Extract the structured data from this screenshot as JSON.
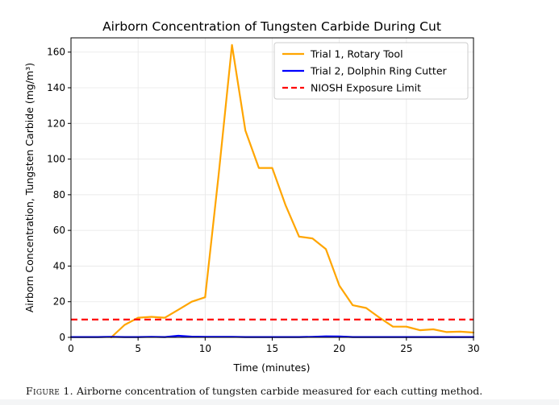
{
  "figure_caption": {
    "label": "Figure 1.",
    "text": "Airborne concentration of tungsten carbide measured for each cutting method."
  },
  "chart_data": {
    "type": "line",
    "title": "Airborn Concentration of Tungsten Carbide During Cut",
    "xlabel": "Time (minutes)",
    "ylabel": "Airborn Concentration, Tungsten Carbide (mg/m³)",
    "xlim": [
      0,
      30
    ],
    "ylim": [
      0,
      168
    ],
    "xticks": [
      0,
      5,
      10,
      15,
      20,
      25,
      30
    ],
    "yticks": [
      0,
      20,
      40,
      60,
      80,
      100,
      120,
      140,
      160
    ],
    "grid": true,
    "legend_position": "top-right",
    "series": [
      {
        "name": "Trial 1, Rotary Tool",
        "color": "#FFA500",
        "style": "solid",
        "x": [
          3,
          4,
          5,
          6,
          7,
          8,
          9,
          10,
          11,
          12,
          13,
          14,
          15,
          16,
          17,
          18,
          19,
          20,
          21,
          22,
          23,
          24,
          25,
          26,
          27,
          28,
          29,
          30
        ],
        "y": [
          0,
          7,
          11,
          11.5,
          11,
          15.5,
          20,
          22.5,
          91,
          164,
          116,
          95,
          95,
          74,
          56.5,
          55.5,
          49.5,
          29,
          18,
          16.5,
          11,
          6,
          6,
          4,
          4.5,
          3,
          3.2,
          2.7
        ]
      },
      {
        "name": "Trial 2, Dolphin Ring Cutter",
        "color": "#0000FF",
        "style": "solid",
        "x": [
          0,
          1,
          2,
          3,
          4,
          5,
          6,
          7,
          8,
          9,
          10,
          11,
          12,
          13,
          14,
          15,
          16,
          17,
          18,
          19,
          20,
          21,
          22,
          23,
          24,
          25,
          26,
          27,
          28,
          29,
          30
        ],
        "y": [
          0.2,
          0.2,
          0.2,
          0.3,
          0.2,
          0.2,
          0.3,
          0.2,
          0.9,
          0.4,
          0.3,
          0.3,
          0.3,
          0.2,
          0.2,
          0.2,
          0.2,
          0.2,
          0.3,
          0.6,
          0.5,
          0.2,
          0.2,
          0.2,
          0.2,
          0.2,
          0.2,
          0.2,
          0.2,
          0.2,
          0.2
        ]
      },
      {
        "name": "NIOSH Exposure Limit",
        "color": "#FF0000",
        "style": "dashed",
        "x": [
          0,
          30
        ],
        "y": [
          10,
          10
        ]
      }
    ]
  }
}
